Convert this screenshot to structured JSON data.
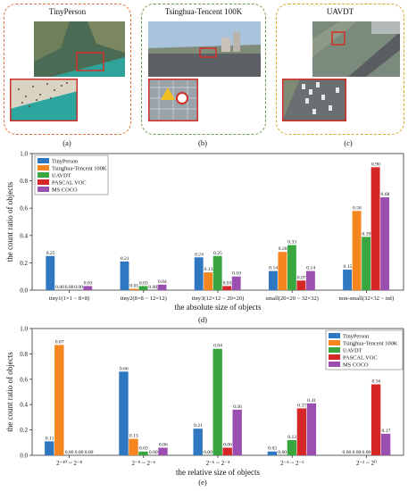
{
  "panels": [
    {
      "title": "TinyPerson",
      "caption": "(a)",
      "border_color": "#e0703a"
    },
    {
      "title": "Tsinghua-Tencent 100K",
      "caption": "(b)",
      "border_color": "#6a9a4a"
    },
    {
      "title": "UAVDT",
      "caption": "(c)",
      "border_color": "#d8a62a"
    }
  ],
  "series_colors": [
    "#2f77c0",
    "#f5861f",
    "#3aa640",
    "#d62728",
    "#9b4fb0"
  ],
  "chart_data": [
    {
      "type": "bar",
      "caption": "(d)",
      "xlabel": "the absolute size of objects",
      "ylabel": "the count ratio of objects",
      "ylim": [
        0,
        1.0
      ],
      "yticks": [
        "0.0",
        "0.2",
        "0.4",
        "0.6",
        "0.8",
        "1.0"
      ],
      "legend_position": "top-left",
      "categories": [
        "tiny1(1×1 ~ 8×8)",
        "tiny2(8×8 ~ 12×12)",
        "tiny3(12×12 ~ 20×20)",
        "small(20×20 ~ 32×32)",
        "non-small(32×32 ~ inf)"
      ],
      "series": [
        {
          "name": "TinyPerson",
          "values": [
            0.25,
            0.21,
            0.24,
            0.14,
            0.15
          ]
        },
        {
          "name": "Tsinghua-Tencent 100K",
          "values": [
            0.0,
            0.01,
            0.13,
            0.28,
            0.58
          ]
        },
        {
          "name": "UAVDT",
          "values": [
            0.0,
            0.03,
            0.25,
            0.33,
            0.39
          ]
        },
        {
          "name": "PASCAL VOC",
          "values": [
            0.0,
            0.0,
            0.03,
            0.07,
            0.9
          ]
        },
        {
          "name": "MS COCO",
          "values": [
            0.03,
            0.04,
            0.1,
            0.14,
            0.68
          ]
        }
      ]
    },
    {
      "type": "bar",
      "caption": "(e)",
      "xlabel": "the relative size of objects",
      "ylabel": "the count ratio of objects",
      "ylim": [
        0,
        1.0
      ],
      "yticks": [
        "0.0",
        "0.2",
        "0.4",
        "0.6",
        "0.8",
        "1.0"
      ],
      "legend_position": "top-right",
      "categories": [
        "2⁻¹⁰ ~ 2⁻⁸",
        "2⁻⁸ ~ 2⁻⁶",
        "2⁻⁶ ~ 2⁻⁴",
        "2⁻⁴ ~ 2⁻²",
        "2⁻² ~ 2⁰"
      ],
      "series": [
        {
          "name": "TinyPerson",
          "values": [
            0.11,
            0.66,
            0.21,
            0.03,
            0.0
          ]
        },
        {
          "name": "Tsinghua-Tencent 100K",
          "values": [
            0.87,
            0.13,
            0.0,
            0.0,
            0.0
          ]
        },
        {
          "name": "UAVDT",
          "values": [
            0.0,
            0.03,
            0.84,
            0.12,
            0.0
          ]
        },
        {
          "name": "PASCAL VOC",
          "values": [
            0.0,
            0.0,
            0.06,
            0.37,
            0.56
          ]
        },
        {
          "name": "MS COCO",
          "values": [
            0.0,
            0.06,
            0.36,
            0.41,
            0.17
          ]
        }
      ]
    }
  ]
}
